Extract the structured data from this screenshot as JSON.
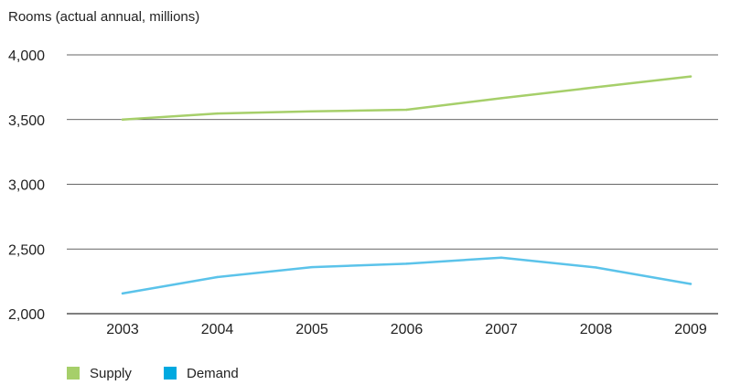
{
  "chart_data": {
    "type": "line",
    "title": "",
    "ylabel": "Rooms (actual annual, millions)",
    "xlabel": "",
    "categories": [
      "2003",
      "2004",
      "2005",
      "2006",
      "2007",
      "2008",
      "2009"
    ],
    "ylim": [
      2000,
      4000
    ],
    "yticks": [
      2000,
      2500,
      3000,
      3500,
      4000
    ],
    "ytick_labels": [
      "2,000",
      "2,500",
      "3,000",
      "3,500",
      "4,000"
    ],
    "grid": "horizontal",
    "legend_position": "bottom-left",
    "series": [
      {
        "name": "Supply",
        "color": "#a6cf6a",
        "values": [
          3500,
          3547,
          3563,
          3576,
          3665,
          3750,
          3833
        ]
      },
      {
        "name": "Demand",
        "color": "#5bc3ea",
        "legend_color": "#00a9e0",
        "values": [
          2156,
          2283,
          2360,
          2386,
          2433,
          2357,
          2230
        ]
      }
    ]
  }
}
